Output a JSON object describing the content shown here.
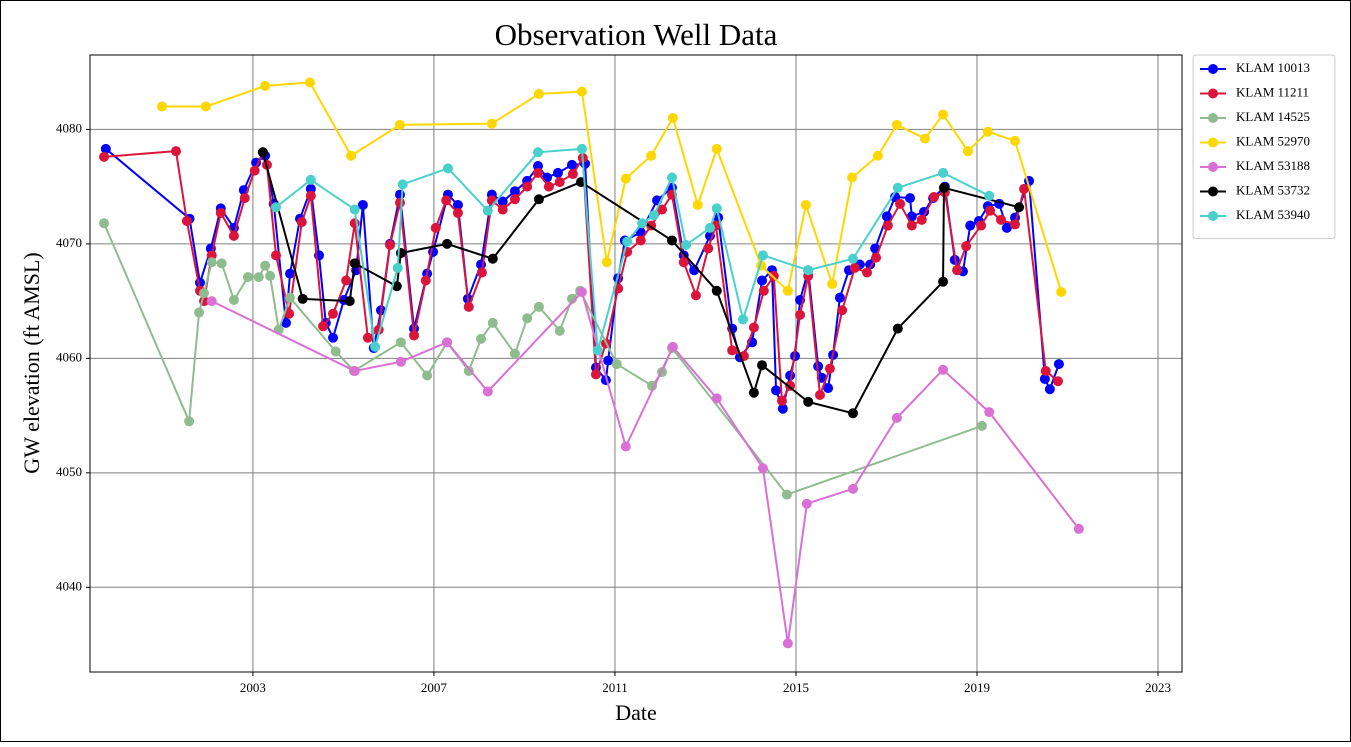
{
  "chart_data": {
    "type": "line",
    "title": "Observation Well Data",
    "x_label": "Date",
    "y_label": "GW elevation (ft AMSL)",
    "xlim": [
      1999.4,
      2023.53
    ],
    "ylim": [
      4032.6,
      4086.5
    ],
    "xticks": [
      2003,
      2007,
      2011,
      2015,
      2019,
      2023
    ],
    "yticks": [
      4040,
      4050,
      4060,
      4070,
      4080
    ],
    "grid": true,
    "legend": "outside-right",
    "markers": true,
    "series": [
      {
        "name": "KLAM 10013",
        "color": "#0000ff",
        "x": [
          1999.75,
          2001.6,
          2001.83,
          2002.07,
          2002.29,
          2002.58,
          2002.8,
          2003.07,
          2003.27,
          2003.46,
          2003.73,
          2003.82,
          2004.04,
          2004.28,
          2004.46,
          2004.61,
          2004.77,
          2005.01,
          2005.28,
          2005.43,
          2005.67,
          2005.83,
          2006.03,
          2006.25,
          2006.56,
          2006.85,
          2006.98,
          2007.31,
          2007.53,
          2007.75,
          2008.04,
          2008.28,
          2008.52,
          2008.79,
          2009.06,
          2009.3,
          2009.5,
          2009.74,
          2010.05,
          2010.34,
          2010.58,
          2010.8,
          2010.85,
          2011.07,
          2011.22,
          2011.57,
          2011.93,
          2012.26,
          2012.52,
          2012.75,
          2013.1,
          2013.28,
          2013.59,
          2013.76,
          2014.03,
          2014.25,
          2014.47,
          2014.56,
          2014.71,
          2014.87,
          2014.98,
          2015.09,
          2015.27,
          2015.49,
          2015.57,
          2015.71,
          2015.82,
          2015.97,
          2016.17,
          2016.41,
          2016.64,
          2016.75,
          2017.01,
          2017.19,
          2017.52,
          2017.56,
          2017.83,
          2018.03,
          2018.29,
          2018.51,
          2018.69,
          2018.85,
          2019.04,
          2019.24,
          2019.49,
          2019.66,
          2019.84,
          2020.15,
          2020.5,
          2020.61,
          2020.81
        ],
        "values": [
          4078.3,
          4072.2,
          4066.6,
          4069.6,
          4073.1,
          4071.4,
          4074.7,
          4077.1,
          4077.7,
          4073.5,
          4063.1,
          4067.4,
          4072.2,
          4074.8,
          4069.0,
          4063.1,
          4061.8,
          4065.1,
          4067.7,
          4073.4,
          4060.9,
          4064.2,
          4070.0,
          4074.3,
          4062.6,
          4067.4,
          4069.3,
          4074.3,
          4073.4,
          4065.2,
          4068.2,
          4074.3,
          4073.7,
          4074.6,
          4075.5,
          4076.8,
          4075.8,
          4076.2,
          4076.9,
          4077.0,
          4059.2,
          4058.1,
          4059.8,
          4067.0,
          4070.3,
          4071.0,
          4073.8,
          4074.9,
          4069.0,
          4067.7,
          4070.7,
          4072.3,
          4062.6,
          4060.1,
          4061.4,
          4066.8,
          4067.7,
          4057.2,
          4055.6,
          4058.5,
          4060.2,
          4065.1,
          4067.7,
          4059.3,
          4058.3,
          4057.4,
          4060.3,
          4065.3,
          4067.7,
          4068.2,
          4068.2,
          4069.6,
          4072.4,
          4074.1,
          4074.0,
          4072.4,
          4072.8,
          4074.0,
          4075.0,
          4068.6,
          4067.6,
          4071.6,
          4072.0,
          4073.3,
          4073.5,
          4071.4,
          4072.3,
          4075.5,
          4058.2,
          4057.3,
          4059.5
        ]
      },
      {
        "name": "KLAM 11211",
        "color": "#dc143c",
        "x": [
          1999.71,
          2001.3,
          2001.54,
          2001.83,
          2001.92,
          2002.09,
          2002.29,
          2002.58,
          2002.82,
          2003.04,
          2003.22,
          2003.31,
          2003.51,
          2003.8,
          2004.08,
          2004.28,
          2004.55,
          2004.77,
          2005.06,
          2005.25,
          2005.54,
          2005.78,
          2006.03,
          2006.25,
          2006.56,
          2006.82,
          2007.04,
          2007.27,
          2007.53,
          2007.77,
          2008.06,
          2008.28,
          2008.52,
          2008.79,
          2009.06,
          2009.3,
          2009.54,
          2009.78,
          2010.07,
          2010.29,
          2010.58,
          2010.8,
          2011.07,
          2011.27,
          2011.57,
          2011.8,
          2012.04,
          2012.26,
          2012.52,
          2012.79,
          2013.06,
          2013.23,
          2013.59,
          2013.85,
          2014.07,
          2014.29,
          2014.51,
          2014.69,
          2014.87,
          2015.09,
          2015.27,
          2015.53,
          2015.75,
          2016.02,
          2016.3,
          2016.57,
          2016.77,
          2017.03,
          2017.3,
          2017.56,
          2017.78,
          2018.05,
          2018.29,
          2018.56,
          2018.76,
          2019.09,
          2019.29,
          2019.53,
          2019.84,
          2020.04,
          2020.52,
          2020.79
        ],
        "values": [
          4077.6,
          4078.1,
          4072.0,
          4065.9,
          4065.0,
          4069.0,
          4072.7,
          4070.7,
          4074.0,
          4076.4,
          4078.0,
          4076.9,
          4069.0,
          4063.9,
          4071.9,
          4074.2,
          4062.8,
          4063.9,
          4066.8,
          4071.8,
          4061.8,
          4062.5,
          4069.9,
          4073.6,
          4062.0,
          4066.8,
          4071.4,
          4073.8,
          4072.7,
          4064.5,
          4067.5,
          4073.8,
          4073.0,
          4073.9,
          4075.0,
          4076.2,
          4075.0,
          4075.4,
          4076.1,
          4077.5,
          4058.6,
          4061.3,
          4066.1,
          4069.3,
          4070.3,
          4071.6,
          4073.0,
          4074.3,
          4068.4,
          4065.5,
          4069.6,
          4071.6,
          4060.7,
          4060.2,
          4062.7,
          4065.9,
          4067.2,
          4056.3,
          4057.6,
          4063.8,
          4067.2,
          4056.8,
          4059.1,
          4064.2,
          4067.9,
          4067.5,
          4068.8,
          4071.6,
          4073.5,
          4071.6,
          4072.1,
          4074.1,
          4074.5,
          4067.7,
          4069.8,
          4071.6,
          4072.9,
          4072.1,
          4071.7,
          4074.8,
          4058.9,
          4058.0
        ]
      },
      {
        "name": "KLAM 14525",
        "color": "#8fbc8f",
        "x": [
          1999.71,
          2001.59,
          2001.81,
          2001.92,
          2002.09,
          2002.31,
          2002.58,
          2002.89,
          2003.13,
          2003.27,
          2003.38,
          2003.57,
          2003.82,
          2004.83,
          2005.23,
          2006.27,
          2006.85,
          2007.29,
          2007.77,
          2008.04,
          2008.3,
          2008.79,
          2009.06,
          2009.32,
          2009.78,
          2010.05,
          2010.23,
          2011.04,
          2011.82,
          2012.04,
          2012.26,
          2014.8,
          2019.11
        ],
        "values": [
          4071.8,
          4054.5,
          4064.0,
          4065.7,
          4068.4,
          4068.3,
          4065.1,
          4067.1,
          4067.1,
          4068.1,
          4067.2,
          4062.5,
          4065.3,
          4060.6,
          4058.9,
          4061.4,
          4058.5,
          4061.4,
          4058.9,
          4061.7,
          4063.1,
          4060.4,
          4063.5,
          4064.5,
          4062.4,
          4065.2,
          4065.9,
          4059.5,
          4057.6,
          4058.8,
          4060.9,
          4048.1,
          4054.1
        ]
      },
      {
        "name": "KLAM 52970",
        "color": "#ffd700",
        "x": [
          2000.99,
          2001.96,
          2003.27,
          2004.26,
          2005.17,
          2006.25,
          2008.28,
          2009.32,
          2010.27,
          2010.82,
          2011.24,
          2011.8,
          2012.28,
          2012.83,
          2013.25,
          2014.23,
          2014.82,
          2015.22,
          2015.8,
          2016.24,
          2016.81,
          2017.23,
          2017.85,
          2018.25,
          2018.8,
          2019.24,
          2019.84,
          2020.86
        ],
        "values": [
          4082.0,
          4082.0,
          4083.8,
          4084.1,
          4077.7,
          4080.4,
          4080.5,
          4083.1,
          4083.3,
          4068.4,
          4075.7,
          4077.7,
          4081.0,
          4073.4,
          4078.3,
          4068.1,
          4065.9,
          4073.4,
          4066.5,
          4075.8,
          4077.7,
          4080.4,
          4079.2,
          4081.3,
          4078.1,
          4079.8,
          4079.0,
          4065.8
        ]
      },
      {
        "name": "KLAM 53188",
        "color": "#da70d6",
        "x": [
          2002.09,
          2005.25,
          2006.27,
          2007.29,
          2008.19,
          2010.27,
          2011.24,
          2012.28,
          2013.25,
          2014.27,
          2014.82,
          2015.24,
          2016.26,
          2017.23,
          2018.25,
          2019.27,
          2021.25
        ],
        "values": [
          4065.0,
          4058.9,
          4059.7,
          4061.4,
          4057.1,
          4065.8,
          4052.3,
          4061.0,
          4056.5,
          4050.4,
          4035.1,
          4047.3,
          4048.6,
          4054.8,
          4059.0,
          4055.3,
          4045.1
        ]
      },
      {
        "name": "KLAM 53732",
        "color": "#000000",
        "x": [
          2003.22,
          2004.1,
          2005.14,
          2005.25,
          2006.18,
          2006.27,
          2007.29,
          2008.3,
          2009.32,
          2010.25,
          2012.26,
          2013.25,
          2014.07,
          2014.25,
          2015.27,
          2016.26,
          2017.25,
          2018.25,
          2018.27,
          2019.93
        ],
        "values": [
          4078.0,
          4065.2,
          4065.0,
          4068.3,
          4066.3,
          4069.2,
          4070.0,
          4068.7,
          4073.9,
          4075.4,
          4070.3,
          4065.9,
          4057.0,
          4059.4,
          4056.2,
          4055.2,
          4062.6,
          4066.7,
          4074.9,
          4073.2
        ]
      },
      {
        "name": "KLAM 53940",
        "color": "#48d1cc",
        "x": [
          2003.51,
          2004.28,
          2005.25,
          2005.7,
          2006.2,
          2006.31,
          2007.31,
          2008.19,
          2009.3,
          2010.27,
          2010.62,
          2011.27,
          2011.6,
          2011.86,
          2012.26,
          2012.57,
          2013.1,
          2013.25,
          2013.83,
          2014.27,
          2015.27,
          2016.26,
          2017.25,
          2018.25,
          2019.27
        ],
        "values": [
          4073.2,
          4075.6,
          4073.0,
          4061.0,
          4067.9,
          4075.2,
          4076.6,
          4072.9,
          4078.0,
          4078.3,
          4060.7,
          4070.2,
          4071.8,
          4072.5,
          4075.8,
          4069.9,
          4071.4,
          4073.1,
          4063.4,
          4069.0,
          4067.7,
          4068.7,
          4074.9,
          4076.2,
          4074.2
        ]
      }
    ]
  }
}
